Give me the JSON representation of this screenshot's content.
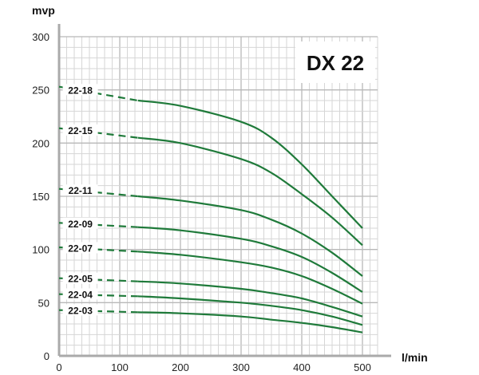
{
  "chart_data": {
    "type": "line",
    "title": "DX 22",
    "xlabel": "l/min",
    "ylabel": "mvp",
    "xlim": [
      0,
      525
    ],
    "ylim": [
      0,
      300
    ],
    "xticks": [
      0,
      100,
      200,
      300,
      400,
      500
    ],
    "yticks": [
      0,
      50,
      100,
      150,
      200,
      250,
      300
    ],
    "grid": true,
    "line_color": "#1f7a3a",
    "dashed_until_x": 130,
    "x": [
      0,
      130,
      200,
      300,
      350,
      400,
      450,
      500
    ],
    "series": [
      {
        "name": "22-18",
        "values": [
          253,
          240,
          235,
          220,
          205,
          180,
          150,
          120
        ]
      },
      {
        "name": "22-15",
        "values": [
          214,
          205,
          200,
          185,
          172,
          152,
          130,
          104
        ]
      },
      {
        "name": "22-11",
        "values": [
          157,
          150,
          146,
          137,
          128,
          115,
          97,
          75
        ]
      },
      {
        "name": "22-09",
        "values": [
          125,
          121,
          118,
          110,
          103,
          93,
          78,
          60
        ]
      },
      {
        "name": "22-07",
        "values": [
          102,
          98,
          95,
          88,
          83,
          75,
          63,
          49
        ]
      },
      {
        "name": "22-05",
        "values": [
          73,
          70,
          68,
          63,
          59,
          54,
          46,
          37
        ]
      },
      {
        "name": "22-04",
        "values": [
          58,
          56,
          54,
          50,
          47,
          43,
          37,
          29
        ]
      },
      {
        "name": "22-03",
        "values": [
          43,
          41,
          40,
          37,
          34,
          31,
          27,
          22
        ]
      }
    ]
  }
}
